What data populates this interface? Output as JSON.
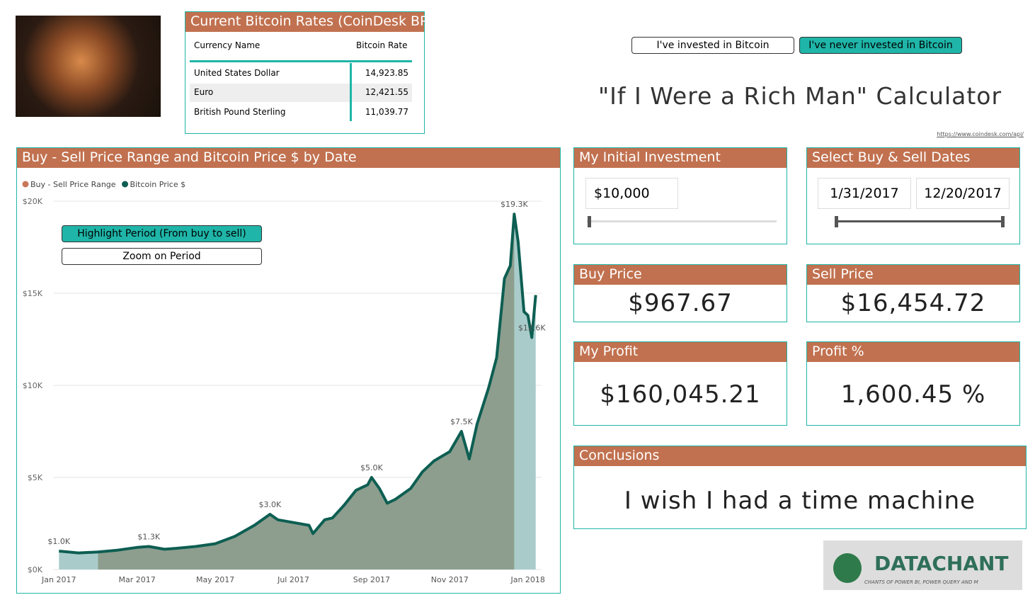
{
  "header": {
    "title": "\"If I Were a Rich Man\" Calculator",
    "link": "https://www.coindesk.com/api/",
    "buttons": [
      "I've invested in Bitcoin",
      "I've never invested in Bitcoin"
    ]
  },
  "rates_table": {
    "title": "Current Bitcoin Rates (CoinDesk BPI)",
    "columns": [
      "Currency Name",
      "Bitcoin Rate"
    ],
    "rows": [
      [
        "United States Dollar",
        "14,923.85"
      ],
      [
        "Euro",
        "12,421.55"
      ],
      [
        "British Pound Sterling",
        "11,039.77"
      ]
    ]
  },
  "cards": {
    "investment": {
      "title": "My Initial Investment",
      "value": "$10,000"
    },
    "dates": {
      "title": "Select Buy & Sell Dates",
      "buy": "1/31/2017",
      "sell": "12/20/2017"
    },
    "buy_price": {
      "title": "Buy Price",
      "value": "$967.67"
    },
    "sell_price": {
      "title": "Sell Price",
      "value": "$16,454.72"
    },
    "profit": {
      "title": "My Profit",
      "value": "$160,045.21"
    },
    "profit_pct": {
      "title": "Profit %",
      "value": "1,600.45 %"
    },
    "conclusions": {
      "title": "Conclusions",
      "value": "I wish I had a time machine"
    }
  },
  "logo": {
    "name": "DATACHANT",
    "tagline": "CHANTS OF POWER BI, POWER QUERY AND M"
  },
  "chart_buttons": [
    "Highlight Period (From buy to sell)",
    "Zoom on Period"
  ],
  "chart_data": {
    "type": "area",
    "title": "Buy - Sell Price Range and Bitcoin Price $ by Date",
    "x": [
      0,
      0.5,
      1.0,
      1.5,
      2.0,
      2.3,
      2.7,
      3.0,
      3.5,
      4.0,
      4.5,
      5.0,
      5.4,
      5.6,
      6.0,
      6.4,
      6.5,
      6.8,
      7.0,
      7.3,
      7.6,
      7.9,
      8.0,
      8.2,
      8.4,
      8.6,
      9.0,
      9.3,
      9.6,
      10.0,
      10.3,
      10.5,
      10.7,
      11.0,
      11.2,
      11.4,
      11.55,
      11.65,
      11.75,
      11.9,
      12.0,
      12.1,
      12.2
    ],
    "series": [
      {
        "name": "Buy - Sell Price Range",
        "color": "#c8775a",
        "area_color": "#8d9e8e",
        "values": [
          null,
          null,
          950,
          1050,
          1200,
          1250,
          1100,
          1150,
          1250,
          1400,
          1800,
          2400,
          3000,
          2700,
          2550,
          2400,
          1950,
          2700,
          2800,
          3500,
          4300,
          4600,
          5000,
          4400,
          3600,
          3800,
          4400,
          5300,
          5900,
          6400,
          7500,
          6000,
          7900,
          9900,
          11500,
          15800,
          16500,
          19300,
          null,
          null,
          null,
          null,
          null
        ]
      },
      {
        "name": "Bitcoin Price $",
        "color": "#0d5e52",
        "area_color": "#a9cccb",
        "values": [
          1000,
          900,
          950,
          1050,
          1200,
          1250,
          1100,
          1150,
          1250,
          1400,
          1800,
          2400,
          3000,
          2700,
          2550,
          2400,
          1950,
          2700,
          2800,
          3500,
          4300,
          4600,
          5000,
          4400,
          3600,
          3800,
          4400,
          5300,
          5900,
          6400,
          7500,
          6000,
          7900,
          9900,
          11500,
          15800,
          16500,
          19300,
          17800,
          14000,
          13800,
          12600,
          14900
        ],
        "value_labels": [
          "$1.0K",
          null,
          null,
          null,
          null,
          "$1.3K",
          null,
          null,
          null,
          null,
          null,
          null,
          "$3.0K",
          null,
          null,
          null,
          null,
          null,
          null,
          null,
          null,
          null,
          "$5.0K",
          null,
          null,
          null,
          null,
          null,
          null,
          null,
          "$7.5K",
          null,
          null,
          null,
          null,
          null,
          null,
          "$19.3K",
          null,
          null,
          null,
          "$12.6K",
          null
        ]
      }
    ],
    "xlim": [
      -0.15,
      12.35
    ],
    "xticks": [
      {
        "value": 0,
        "label": "Jan 2017"
      },
      {
        "value": 2,
        "label": "Mar 2017"
      },
      {
        "value": 4,
        "label": "May 2017"
      },
      {
        "value": 6,
        "label": "Jul 2017"
      },
      {
        "value": 8,
        "label": "Sep 2017"
      },
      {
        "value": 10,
        "label": "Nov 2017"
      },
      {
        "value": 12,
        "label": "Jan 2018"
      }
    ],
    "ylim": [
      0,
      20000
    ],
    "yticks": [
      {
        "value": 0,
        "label": "$0K"
      },
      {
        "value": 5000,
        "label": "$5K"
      },
      {
        "value": 10000,
        "label": "$10K"
      },
      {
        "value": 15000,
        "label": "$15K"
      },
      {
        "value": 20000,
        "label": "$20K"
      }
    ],
    "grid": true
  }
}
